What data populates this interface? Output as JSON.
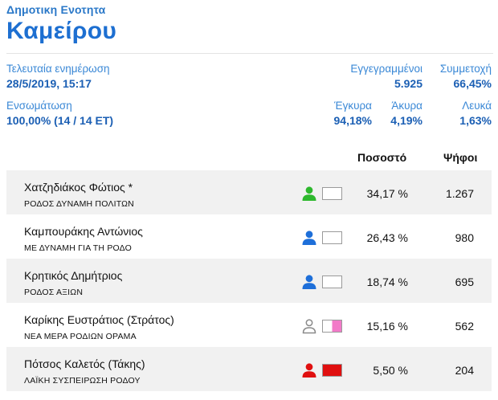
{
  "header": {
    "unit_label": "Δημοτικη Ενοτητα",
    "unit_name": "Καμείρου"
  },
  "stats": {
    "last_update_label": "Τελευταία ενημέρωση",
    "last_update_value": "28/5/2019, 15:17",
    "registered_label": "Εγγεγραμμένοι",
    "registered_value": "5.925",
    "turnout_label": "Συμμετοχή",
    "turnout_value": "66,45%",
    "integration_label": "Ενσωμάτωση",
    "integration_value": "100,00% (14 / 14 ΕΤ)",
    "valid_label": "Έγκυρα",
    "valid_value": "94,18%",
    "invalid_label": "Άκυρα",
    "invalid_value": "4,19%",
    "blank_label": "Λευκά",
    "blank_value": "1,63%"
  },
  "table": {
    "col_percent": "Ποσοστό",
    "col_votes": "Ψήφοι",
    "rows": [
      {
        "name": "Χατζηδιάκος Φώτιος *",
        "party": "ΡΟΔΟΣ ΔΥΝΑΜΗ ΠΟΛΙΤΩΝ",
        "percent": "34,17 %",
        "votes": "1.267",
        "person_color": "#2db82d",
        "person_style": "filled",
        "swatch": [
          "#ffffff",
          "#ffffff"
        ]
      },
      {
        "name": "Καμπουράκης Αντώνιος",
        "party": "ΜΕ ΔΥΝΑΜΗ ΓΙΑ ΤΗ ΡΟΔΟ",
        "percent": "26,43 %",
        "votes": "980",
        "person_color": "#1e6fd9",
        "person_style": "filled",
        "swatch": [
          "#ffffff",
          "#ffffff"
        ]
      },
      {
        "name": "Κρητικός Δημήτριος",
        "party": "ΡΟΔΟΣ ΑΞΙΩΝ",
        "percent": "18,74 %",
        "votes": "695",
        "person_color": "#1e6fd9",
        "person_style": "filled",
        "swatch": [
          "#ffffff",
          "#ffffff"
        ]
      },
      {
        "name": "Καρίκης Ευστράτιος (Στράτος)",
        "party": "ΝΕΑ ΜΕΡΑ ΡΟΔΙΩΝ ΟΡΑΜΑ",
        "percent": "15,16 %",
        "votes": "562",
        "person_color": "#8a8a8a",
        "person_style": "outline",
        "swatch": [
          "#ffffff",
          "#f27ac8"
        ]
      },
      {
        "name": "Πότσος Καλετός (Τάκης)",
        "party": "ΛΑΪΚΗ ΣΥΣΠΕΙΡΩΣΗ ΡΟΔΟΥ",
        "percent": "5,50 %",
        "votes": "204",
        "person_color": "#e01010",
        "person_style": "filled",
        "swatch": [
          "#e01010",
          "#e01010"
        ]
      }
    ]
  }
}
